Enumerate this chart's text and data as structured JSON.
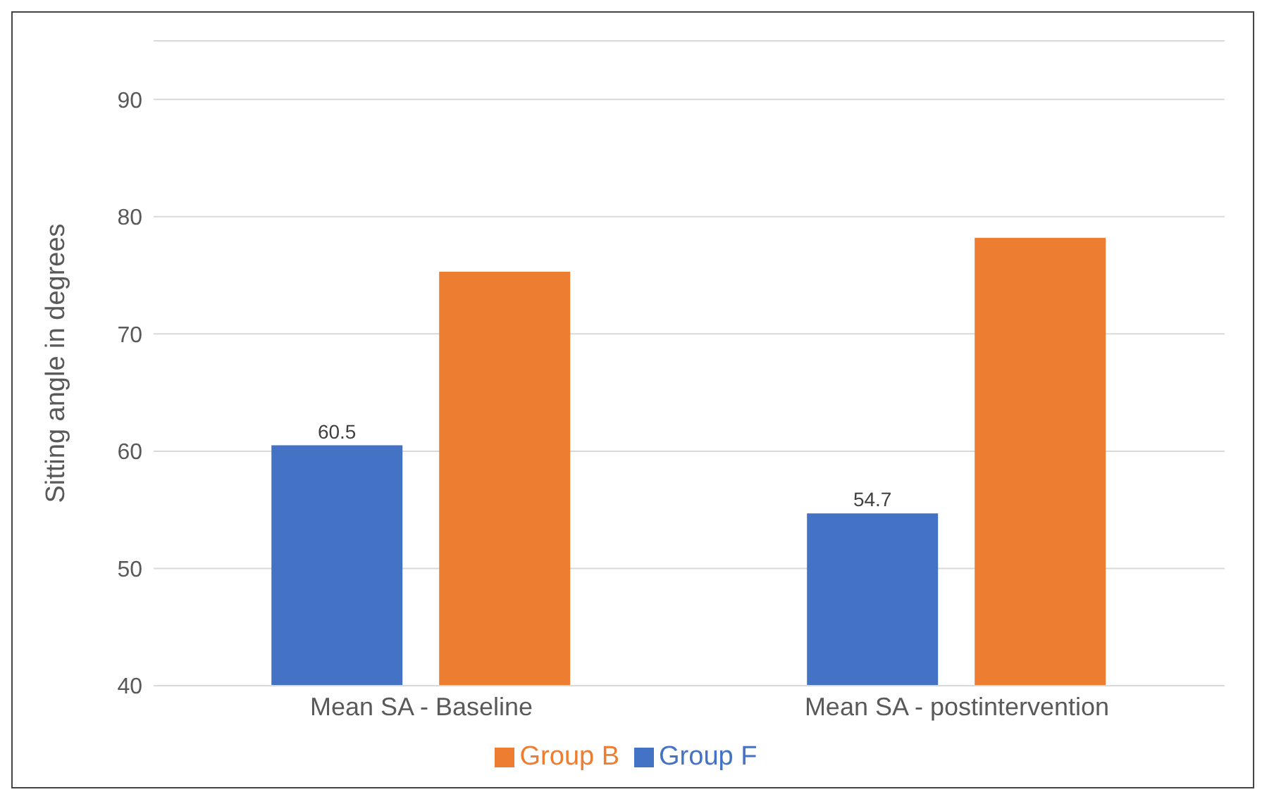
{
  "chart_data": {
    "type": "bar",
    "ylabel": "Sitting angle in degrees",
    "categories": [
      "Mean SA - Baseline",
      "Mean SA - postintervention"
    ],
    "series": [
      {
        "name": "Group F",
        "color": "#4472c4",
        "values": [
          60.5,
          54.7
        ],
        "value_labels": [
          "60.5",
          "54.7"
        ]
      },
      {
        "name": "Group B",
        "color": "#ed7d31",
        "values": [
          75.3,
          78.2
        ],
        "value_labels": [
          null,
          null
        ]
      }
    ],
    "ylim": [
      40,
      95
    ],
    "yticks": [
      40,
      50,
      60,
      70,
      80,
      90
    ],
    "grid": "y",
    "legend": "bottom"
  }
}
